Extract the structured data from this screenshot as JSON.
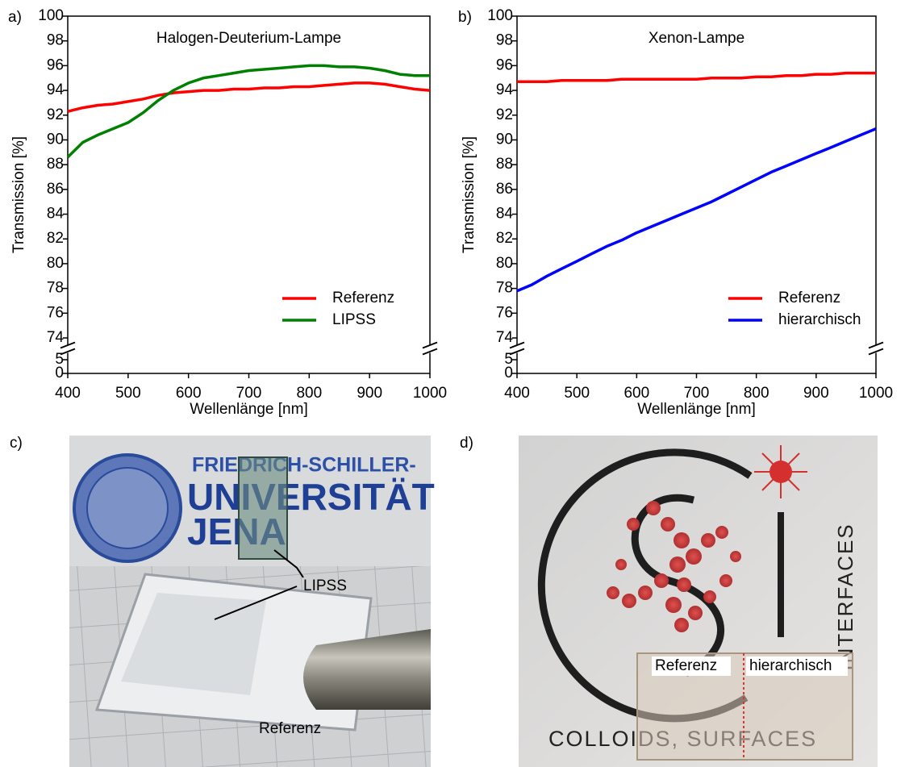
{
  "chart_data": [
    {
      "type": "line",
      "panel": "a)",
      "annotation": "Halogen-Deuterium-Lampe",
      "xlabel": "Wellenlänge [nm]",
      "ylabel": "Transmission [%]",
      "x": [
        400,
        425,
        450,
        475,
        500,
        525,
        550,
        575,
        600,
        625,
        650,
        675,
        700,
        725,
        750,
        775,
        800,
        825,
        850,
        875,
        900,
        925,
        950,
        975,
        1000
      ],
      "series": [
        {
          "name": "Referenz",
          "color": "#ff0000",
          "values": [
            92.3,
            92.6,
            92.8,
            92.9,
            93.1,
            93.3,
            93.6,
            93.8,
            93.9,
            94.0,
            94.0,
            94.1,
            94.1,
            94.2,
            94.2,
            94.3,
            94.3,
            94.4,
            94.5,
            94.6,
            94.6,
            94.5,
            94.3,
            94.1,
            94.0
          ]
        },
        {
          "name": "LIPSS",
          "color": "#008000",
          "values": [
            88.6,
            89.8,
            90.4,
            90.9,
            91.4,
            92.2,
            93.2,
            94.0,
            94.6,
            95.0,
            95.2,
            95.4,
            95.6,
            95.7,
            95.8,
            95.9,
            96.0,
            96.0,
            95.9,
            95.9,
            95.8,
            95.6,
            95.3,
            95.2,
            95.2
          ]
        }
      ],
      "xlim": [
        400,
        1000
      ],
      "xticks": [
        400,
        500,
        600,
        700,
        800,
        900,
        1000
      ],
      "ylim": [
        0,
        100
      ],
      "ybreak": [
        5,
        74
      ],
      "yticks": [
        0,
        5,
        74,
        76,
        78,
        80,
        82,
        84,
        86,
        88,
        90,
        92,
        94,
        96,
        98,
        100
      ],
      "legend": "lower right"
    },
    {
      "type": "line",
      "panel": "b)",
      "annotation": "Xenon-Lampe",
      "xlabel": "Wellenlänge [nm]",
      "ylabel": "Transmission [%]",
      "x": [
        400,
        425,
        450,
        475,
        500,
        525,
        550,
        575,
        600,
        625,
        650,
        675,
        700,
        725,
        750,
        775,
        800,
        825,
        850,
        875,
        900,
        925,
        950,
        975,
        1000
      ],
      "series": [
        {
          "name": "Referenz",
          "color": "#ff0000",
          "values": [
            94.7,
            94.7,
            94.7,
            94.8,
            94.8,
            94.8,
            94.8,
            94.9,
            94.9,
            94.9,
            94.9,
            94.9,
            94.9,
            95.0,
            95.0,
            95.0,
            95.1,
            95.1,
            95.2,
            95.2,
            95.3,
            95.3,
            95.4,
            95.4,
            95.4
          ]
        },
        {
          "name": "hierarchisch",
          "color": "#0000ff",
          "values": [
            77.8,
            78.3,
            79.0,
            79.6,
            80.2,
            80.8,
            81.4,
            81.9,
            82.5,
            83.0,
            83.5,
            84.0,
            84.5,
            85.0,
            85.6,
            86.2,
            86.8,
            87.4,
            87.9,
            88.4,
            88.9,
            89.4,
            89.9,
            90.4,
            90.9
          ]
        }
      ],
      "xlim": [
        400,
        1000
      ],
      "xticks": [
        400,
        500,
        600,
        700,
        800,
        900,
        1000
      ],
      "ylim": [
        0,
        100
      ],
      "ybreak": [
        5,
        74
      ],
      "yticks": [
        0,
        5,
        74,
        76,
        78,
        80,
        82,
        84,
        86,
        88,
        90,
        92,
        94,
        96,
        98,
        100
      ],
      "legend": "lower right"
    }
  ],
  "photos": [
    {
      "panel": "c)",
      "logo": [
        "FRIEDRICH-SCHILLER-",
        "UNIVERSITÄT",
        "JENA"
      ],
      "labels": [
        "LIPSS",
        "Referenz"
      ]
    },
    {
      "panel": "d)",
      "logo": [
        "INTERFACES",
        "COLLOIDS, SURFACES"
      ],
      "labels": [
        "Referenz",
        "hierarchisch"
      ]
    }
  ]
}
